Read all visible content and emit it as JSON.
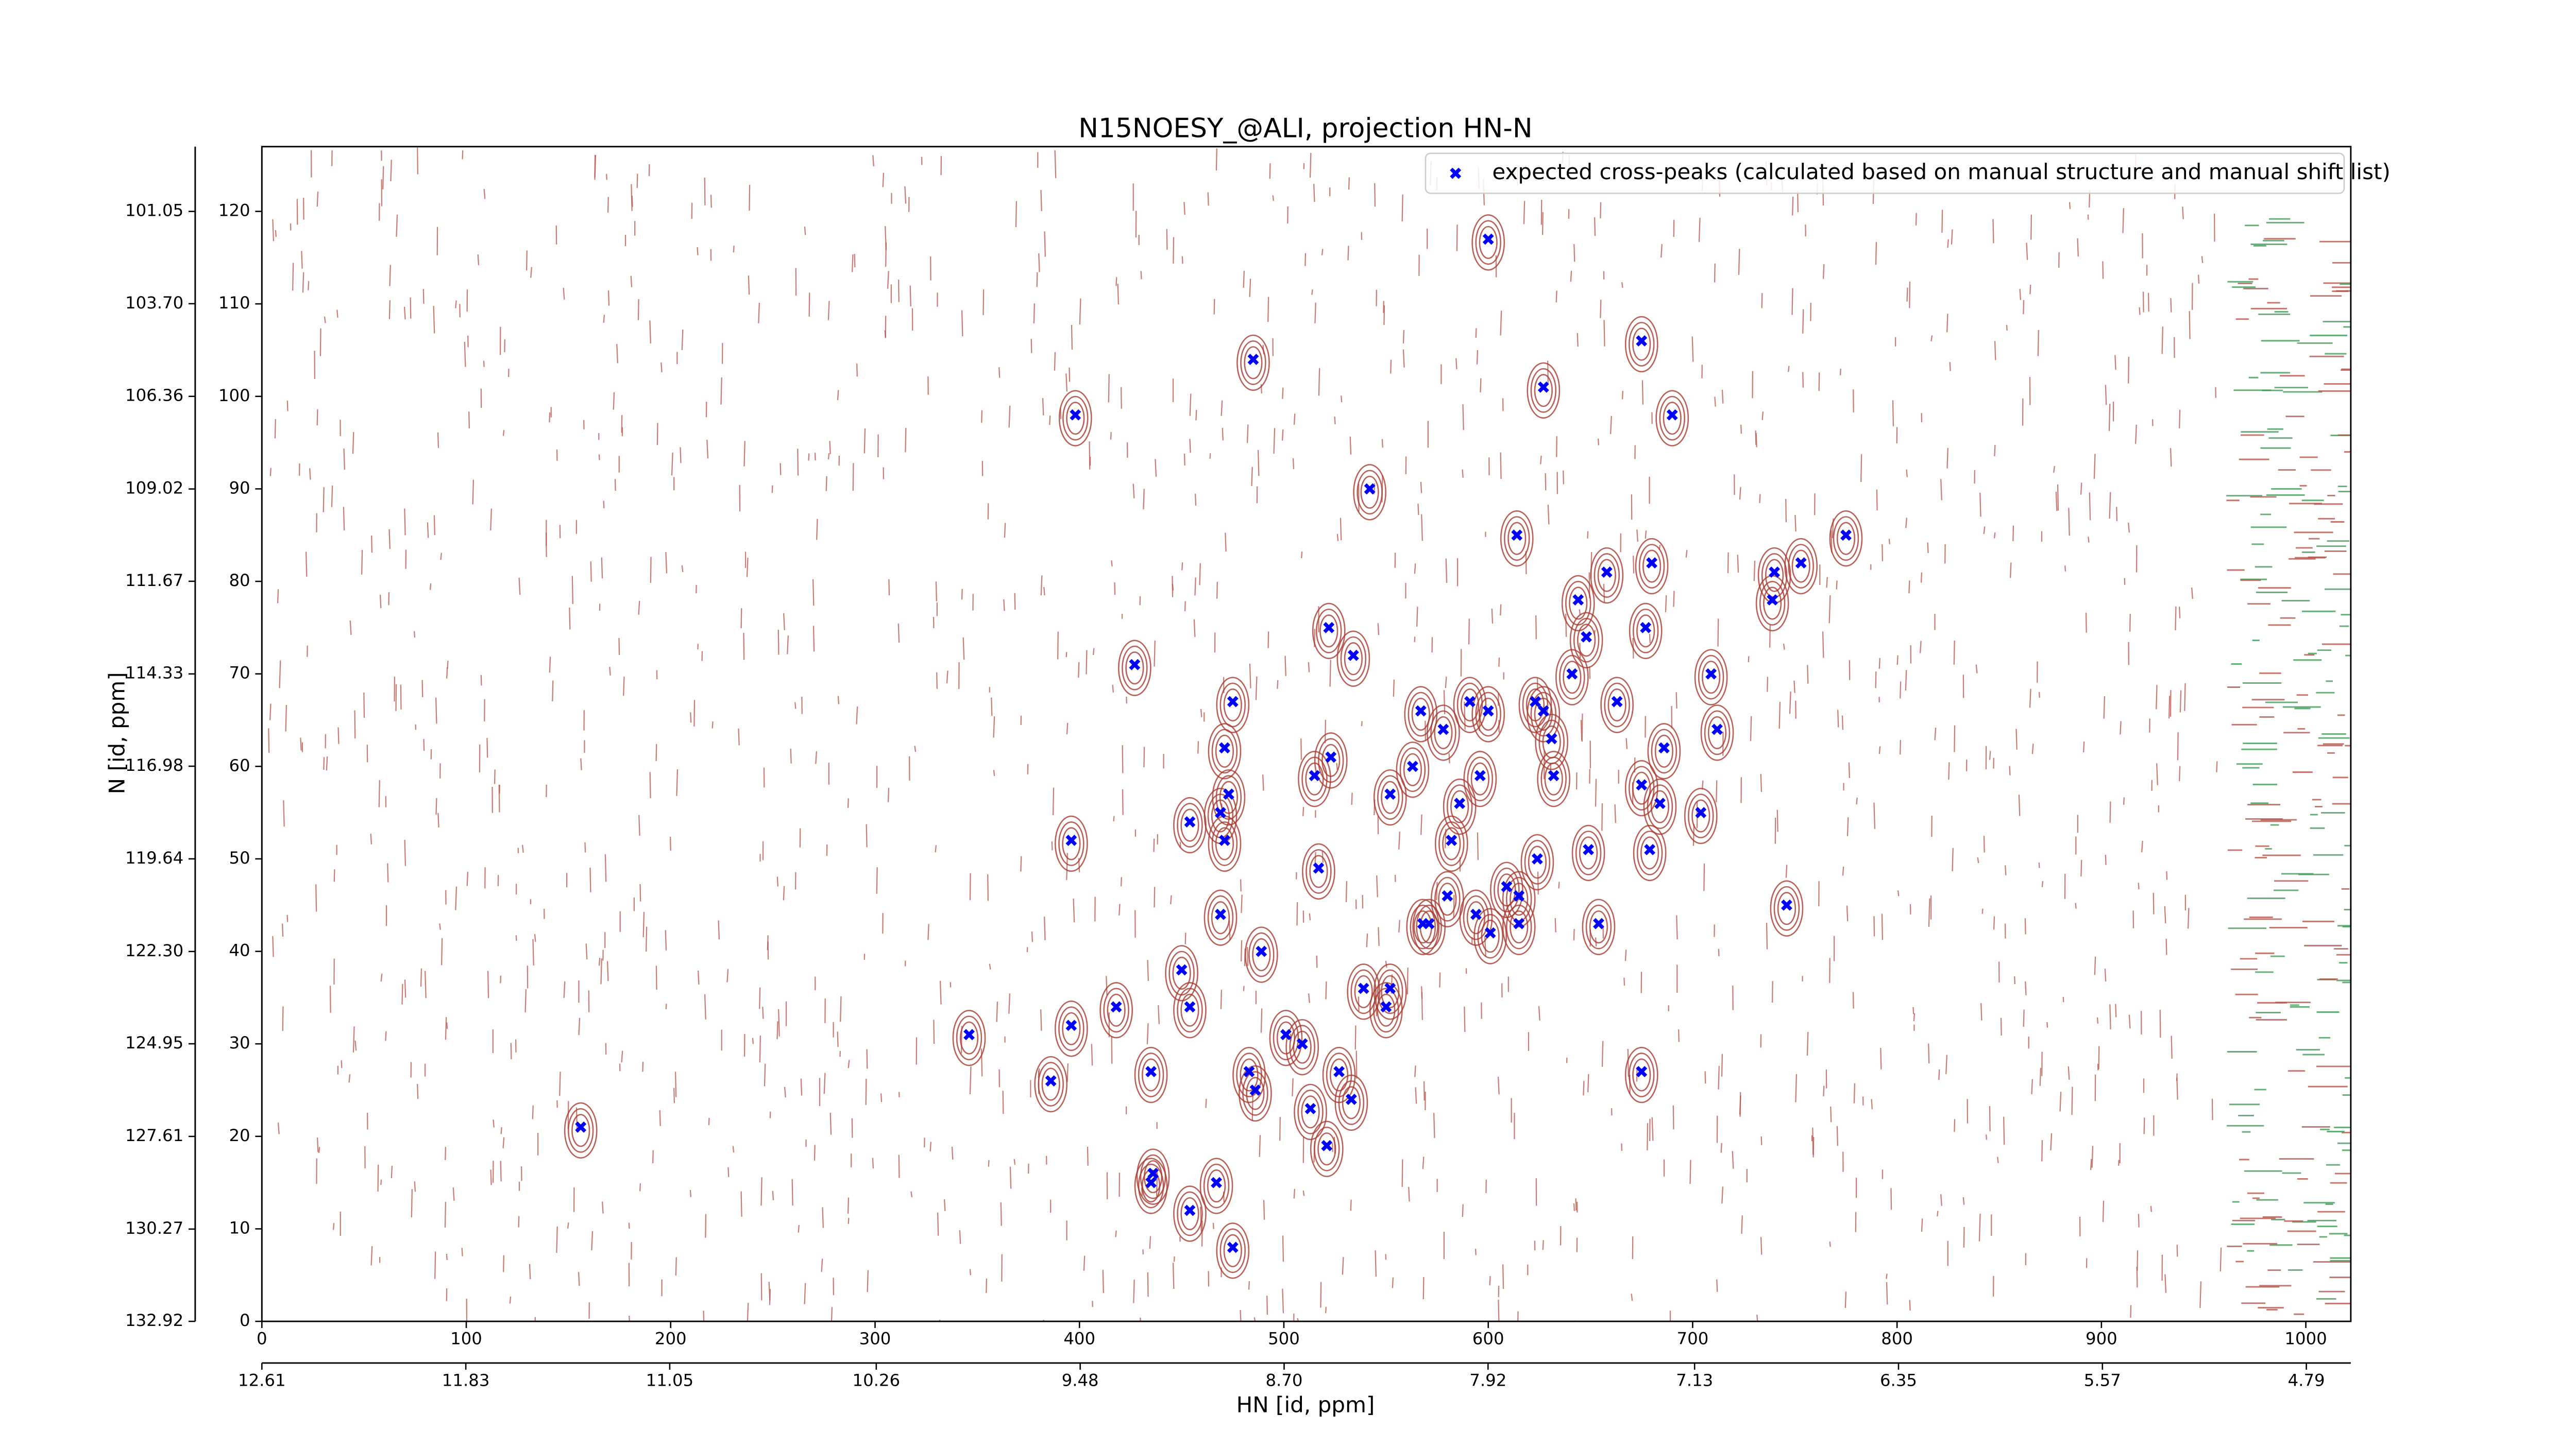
{
  "chart_data": {
    "type": "scatter",
    "title": "N15NOESY_@ALI, projection HN-N",
    "xlabel": "HN [id, ppm]",
    "ylabel": "N [id, ppm]",
    "xlim": [
      0,
      1022
    ],
    "xticks": [
      0,
      100,
      200,
      300,
      400,
      500,
      600,
      700,
      800,
      900,
      1000
    ],
    "ylim": [
      0,
      127
    ],
    "yticks": [
      0,
      10,
      20,
      30,
      40,
      50,
      60,
      70,
      80,
      90,
      100,
      110,
      120
    ],
    "x2lim": [
      12.61,
      4.62
    ],
    "x2ticks": [
      12.61,
      11.83,
      11.05,
      10.26,
      9.48,
      {
        "value": 8.7,
        "label": "8.70"
      },
      7.92,
      7.13,
      6.35,
      5.57,
      4.79
    ],
    "y2lim": [
      132.92,
      99.19
    ],
    "y2ticks": [
      132.92,
      130.27,
      127.61,
      124.95,
      {
        "value": 122.3,
        "label": "122.30"
      },
      119.64,
      116.98,
      114.33,
      111.67,
      109.02,
      106.36,
      {
        "value": 103.7,
        "label": "103.70"
      },
      101.05
    ],
    "legend": "upper right",
    "series": [
      {
        "name": "expected cross-peaks (calculated based on manual structure and manual shift list)",
        "color": "#0000ff",
        "x": [
          600,
          675,
          485,
          627,
          690,
          398,
          542,
          614,
          775,
          680,
          658,
          753,
          740,
          644,
          739,
          522,
          648,
          677,
          534,
          427,
          641,
          709,
          475,
          591,
          623,
          627,
          663,
          567,
          600,
          578,
          712,
          471,
          631,
          686,
          523,
          563,
          515,
          596,
          632,
          675,
          473,
          552,
          684,
          704,
          586,
          469,
          454,
          396,
          471,
          582,
          649,
          679,
          624,
          517,
          580,
          609,
          615,
          746,
          469,
          568,
          594,
          571,
          654,
          615,
          601,
          489,
          450,
          539,
          552,
          550,
          454,
          418,
          396,
          346,
          501,
          509,
          386,
          435,
          483,
          527,
          675,
          486,
          533,
          513,
          156,
          521,
          436,
          435,
          467,
          454,
          475
        ],
        "values": [
          117,
          106,
          104,
          101,
          98,
          98,
          90,
          85,
          85,
          82,
          81,
          82,
          81,
          78,
          78,
          75,
          74,
          75,
          72,
          71,
          70,
          70,
          67,
          67,
          67,
          66,
          67,
          66,
          66,
          64,
          64,
          62,
          63,
          62,
          61,
          60,
          59,
          59,
          59,
          58,
          57,
          57,
          56,
          55,
          56,
          55,
          54,
          52,
          52,
          52,
          51,
          51,
          50,
          49,
          46,
          47,
          46,
          45,
          44,
          43,
          44,
          43,
          43,
          43,
          42,
          40,
          38,
          36,
          36,
          34,
          34,
          34,
          32,
          31,
          31,
          30,
          26,
          27,
          27,
          27,
          27,
          25,
          24,
          23,
          21,
          19,
          16,
          15,
          15,
          12,
          8
        ]
      }
    ]
  }
}
